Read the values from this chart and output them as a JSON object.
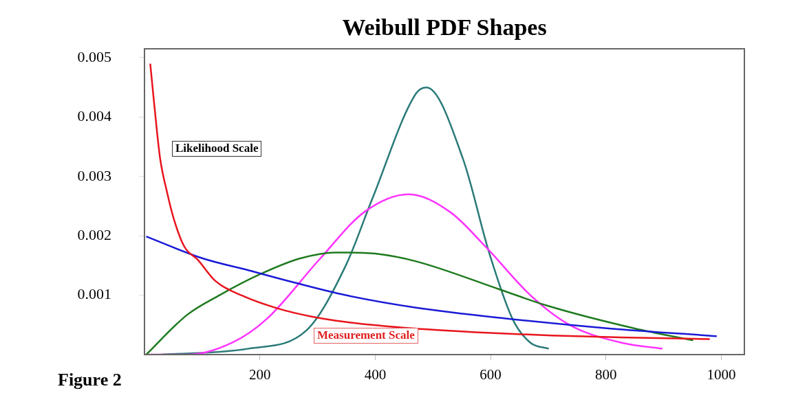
{
  "chart_data": {
    "type": "line",
    "title": "Weibull PDF Shapes",
    "xlim": [
      0,
      1040
    ],
    "xticks": [
      200,
      400,
      600,
      800,
      1000
    ],
    "ylim": [
      0,
      0.00515
    ],
    "yticks": [
      0.001,
      0.002,
      0.003,
      0.004,
      0.005
    ],
    "grid": false,
    "legend": false,
    "marker": "none",
    "line_style": "solid",
    "annotations": [
      "Likelihood Scale",
      "Measurement Scale",
      "Figure 2"
    ],
    "series": [
      {
        "color": "#e8141c",
        "x": [
          10,
          18,
          27,
          39,
          51,
          69,
          93,
          123,
          170,
          230,
          290,
          349,
          468,
          587,
          706,
          825,
          980
        ],
        "values": [
          0.0049,
          0.00411,
          0.00331,
          0.00274,
          0.00228,
          0.00182,
          0.00159,
          0.00124,
          0.00099,
          0.00078,
          0.00064,
          0.00055,
          0.00044,
          0.00037,
          0.00032,
          0.00029,
          0.00026
        ]
      },
      {
        "color": "#1a1ad6",
        "x": [
          3,
          101,
          180,
          257,
          349,
          471,
          624,
          805,
          992
        ],
        "values": [
          0.00199,
          0.00162,
          0.00142,
          0.00122,
          0.001,
          0.00079,
          0.00061,
          0.00044,
          0.00031
        ]
      },
      {
        "color": "#1e7a1e",
        "x": [
          3,
          74,
          130,
          202,
          270,
          331,
          355,
          400,
          471,
          615,
          696,
          850,
          951
        ],
        "values": [
          0,
          0.00067,
          0.001,
          0.00136,
          0.00162,
          0.00172,
          0.00172,
          0.0017,
          0.00157,
          0.0011,
          0.00083,
          0.00044,
          0.00024
        ]
      },
      {
        "color": "#ff33ff",
        "x": [
          3,
          74,
          152,
          212,
          303,
          381,
          458,
          530,
          593,
          669,
          737,
          827,
          898
        ],
        "values": [
          0,
          0,
          0.0002,
          0.0006,
          0.0016,
          0.0024,
          0.0027,
          0.0024,
          0.0018,
          0.001,
          0.0005,
          0.0002,
          0.0001
        ]
      },
      {
        "color": "#2a7a78",
        "x": [
          29,
          180,
          280,
          349,
          394,
          471,
          489,
          552,
          598,
          638,
          669,
          701
        ],
        "values": [
          0,
          0.0001,
          0.0004,
          0.0015,
          0.0026,
          0.0044,
          0.0045,
          0.0033,
          0.0017,
          0.0006,
          0.0002,
          0.0001
        ]
      }
    ]
  }
}
